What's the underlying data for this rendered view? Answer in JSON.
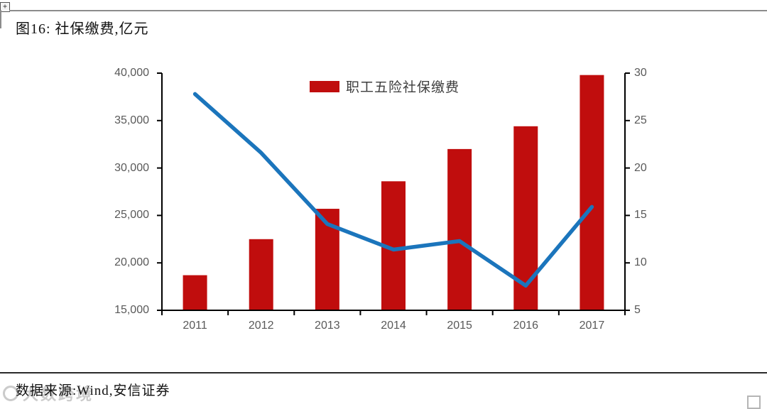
{
  "header": {
    "title": "图16: 社保缴费,亿元"
  },
  "footer": {
    "source": "数据来源:Wind,安信证券",
    "watermark": "大数跨境"
  },
  "chart_data": {
    "type": "bar",
    "title": "图16: 社保缴费,亿元",
    "grid": false,
    "categories": [
      "2011",
      "2012",
      "2013",
      "2014",
      "2015",
      "2016",
      "2017"
    ],
    "series": [
      {
        "name": "职工五险社保缴费",
        "type": "bar",
        "axis": "left",
        "color": "#c00d0d",
        "values": [
          18700,
          22500,
          25700,
          28600,
          32000,
          34400,
          39800
        ]
      },
      {
        "name": "",
        "type": "line",
        "axis": "right",
        "color": "#1b75bc",
        "values": [
          27.8,
          21.6,
          14.1,
          11.4,
          12.3,
          7.6,
          15.9
        ]
      }
    ],
    "left_axis": {
      "min": 15000,
      "max": 40000,
      "step": 5000,
      "tick_values": [
        15000,
        20000,
        25000,
        30000,
        35000,
        40000
      ],
      "tick_labels": [
        "15,000",
        "20,000",
        "25,000",
        "30,000",
        "35,000",
        "40,000"
      ]
    },
    "right_axis": {
      "min": 5,
      "max": 30,
      "step": 5,
      "tick_values": [
        5,
        10,
        15,
        20,
        25,
        30
      ],
      "tick_labels": [
        "5",
        "10",
        "15",
        "20",
        "25",
        "30"
      ]
    },
    "legend": {
      "label": "职工五险社保缴费",
      "position": "top-center"
    },
    "axis_color": "#000000",
    "tick_label_color": "#595959"
  }
}
